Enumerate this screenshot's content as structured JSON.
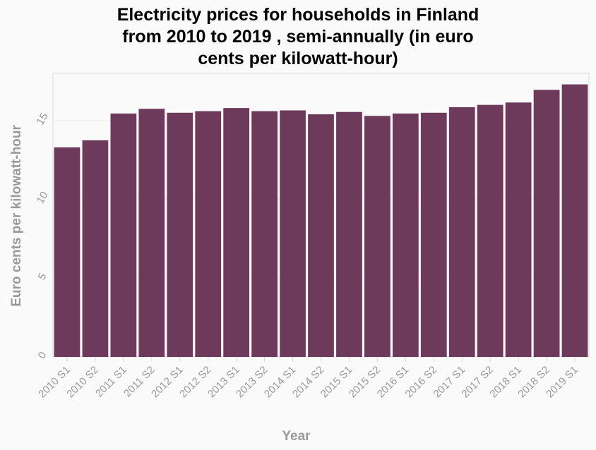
{
  "chart_data": {
    "type": "bar",
    "title": "Electricity prices for households in Finland\nfrom 2010 to 2019 , semi-annually (in euro\ncents per kilowatt-hour)",
    "xlabel": "Year",
    "ylabel": "Euro cents per kilowatt-hour",
    "categories": [
      "2010 S1",
      "2010 S2",
      "2011 S1",
      "2011 S2",
      "2012 S1",
      "2012 S2",
      "2013 S1",
      "2013 S2",
      "2014 S1",
      "2014 S2",
      "2015 S1",
      "2015 S2",
      "2016 S1",
      "2016 S2",
      "2017 S1",
      "2017 S2",
      "2018 S1",
      "2018 S2",
      "2019 S1"
    ],
    "values": [
      13.3,
      13.75,
      15.45,
      15.75,
      15.5,
      15.6,
      15.8,
      15.6,
      15.65,
      15.4,
      15.55,
      15.3,
      15.45,
      15.5,
      15.85,
      16.0,
      16.15,
      16.95,
      17.3
    ],
    "ylim": [
      0,
      18
    ],
    "yticks": [
      0,
      5,
      10,
      15
    ],
    "grid": true,
    "legend": "none",
    "colors": {
      "bar": "#6d3a5c",
      "grid": "#ebebeb",
      "axis_text": "#9a9a9a",
      "title": "#000000",
      "background": "#fafafa",
      "plot_border": "#d9d9d9"
    }
  }
}
